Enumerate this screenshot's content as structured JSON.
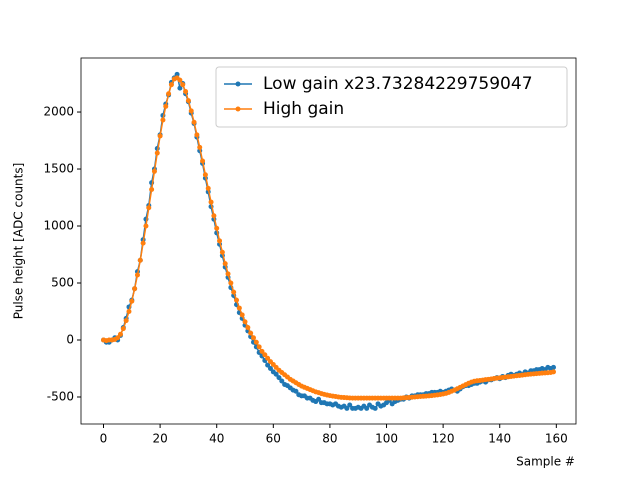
{
  "chart_data": {
    "type": "line",
    "xlabel": "Sample #",
    "ylabel": "Pulse height [ADC counts]",
    "xlim": [
      -7.95,
      166.95
    ],
    "ylim": [
      -737,
      2474
    ],
    "xticks": [
      0,
      20,
      40,
      60,
      80,
      100,
      120,
      140,
      160
    ],
    "yticks": [
      -500,
      0,
      500,
      1000,
      1500,
      2000
    ],
    "legend": "upper right",
    "x": [
      0,
      1,
      2,
      3,
      4,
      5,
      6,
      7,
      8,
      9,
      10,
      11,
      12,
      13,
      14,
      15,
      16,
      17,
      18,
      19,
      20,
      21,
      22,
      23,
      24,
      25,
      26,
      27,
      28,
      29,
      30,
      31,
      32,
      33,
      34,
      35,
      36,
      37,
      38,
      39,
      40,
      41,
      42,
      43,
      44,
      45,
      46,
      47,
      48,
      49,
      50,
      51,
      52,
      53,
      54,
      55,
      56,
      57,
      58,
      59,
      60,
      61,
      62,
      63,
      64,
      65,
      66,
      67,
      68,
      69,
      70,
      71,
      72,
      73,
      74,
      75,
      76,
      77,
      78,
      79,
      80,
      81,
      82,
      83,
      84,
      85,
      86,
      87,
      88,
      89,
      90,
      91,
      92,
      93,
      94,
      95,
      96,
      97,
      98,
      99,
      100,
      101,
      102,
      103,
      104,
      105,
      106,
      107,
      108,
      109,
      110,
      111,
      112,
      113,
      114,
      115,
      116,
      117,
      118,
      119,
      120,
      121,
      122,
      123,
      124,
      125,
      126,
      127,
      128,
      129,
      130,
      131,
      132,
      133,
      134,
      135,
      136,
      137,
      138,
      139,
      140,
      141,
      142,
      143,
      144,
      145,
      146,
      147,
      148,
      149,
      150,
      151,
      152,
      153,
      154,
      155,
      156,
      157,
      158,
      159
    ],
    "series": [
      {
        "name": "Low gain x23.73284229759047",
        "color": "#1f77b4",
        "values": [
          0,
          -20,
          -20,
          0,
          20,
          0,
          40,
          110,
          190,
          290,
          350,
          450,
          600,
          700,
          880,
          1060,
          1180,
          1380,
          1500,
          1680,
          1800,
          1970,
          2070,
          2150,
          2260,
          2300,
          2330,
          2210,
          2250,
          2160,
          2090,
          1990,
          1900,
          1780,
          1660,
          1550,
          1420,
          1300,
          1170,
          1060,
          940,
          840,
          740,
          640,
          550,
          460,
          390,
          310,
          240,
          190,
          130,
          80,
          30,
          -20,
          -60,
          -110,
          -140,
          -180,
          -220,
          -250,
          -280,
          -300,
          -330,
          -360,
          -390,
          -400,
          -420,
          -440,
          -450,
          -480,
          -490,
          -490,
          -510,
          -510,
          -530,
          -540,
          -520,
          -550,
          -550,
          -560,
          -560,
          -570,
          -560,
          -580,
          -590,
          -580,
          -600,
          -570,
          -600,
          -600,
          -590,
          -600,
          -580,
          -600,
          -570,
          -590,
          -600,
          -560,
          -580,
          -570,
          -550,
          -530,
          -560,
          -540,
          -530,
          -520,
          -520,
          -500,
          -510,
          -490,
          -490,
          -480,
          -480,
          -480,
          -470,
          -470,
          -460,
          -460,
          -460,
          -450,
          -460,
          -450,
          -440,
          -430,
          -440,
          -450,
          -430,
          -410,
          -400,
          -400,
          -390,
          -380,
          -380,
          -370,
          -360,
          -370,
          -350,
          -350,
          -340,
          -330,
          -340,
          -320,
          -330,
          -310,
          -300,
          -310,
          -300,
          -290,
          -300,
          -280,
          -290,
          -270,
          -270,
          -260,
          -260,
          -250,
          -260,
          -240,
          -250,
          -240
        ]
      },
      {
        "name": "High gain",
        "color": "#ff7f0e",
        "values": [
          0,
          -5,
          0,
          0,
          5,
          20,
          50,
          100,
          170,
          250,
          340,
          450,
          570,
          700,
          850,
          1000,
          1160,
          1320,
          1480,
          1640,
          1790,
          1930,
          2050,
          2160,
          2240,
          2290,
          2300,
          2280,
          2240,
          2180,
          2100,
          2010,
          1910,
          1800,
          1690,
          1570,
          1450,
          1330,
          1210,
          1090,
          980,
          870,
          770,
          670,
          580,
          500,
          420,
          350,
          280,
          220,
          160,
          110,
          60,
          20,
          -20,
          -60,
          -100,
          -130,
          -160,
          -190,
          -215,
          -240,
          -265,
          -285,
          -305,
          -325,
          -345,
          -360,
          -375,
          -390,
          -405,
          -415,
          -425,
          -435,
          -445,
          -455,
          -462,
          -470,
          -477,
          -483,
          -488,
          -492,
          -496,
          -500,
          -503,
          -505,
          -507,
          -509,
          -510,
          -510,
          -510,
          -510,
          -510,
          -510,
          -510,
          -510,
          -510,
          -510,
          -510,
          -510,
          -510,
          -510,
          -510,
          -510,
          -510,
          -510,
          -508,
          -506,
          -504,
          -502,
          -500,
          -498,
          -496,
          -494,
          -492,
          -490,
          -488,
          -485,
          -482,
          -478,
          -474,
          -468,
          -460,
          -450,
          -440,
          -428,
          -416,
          -404,
          -392,
          -380,
          -370,
          -362,
          -358,
          -355,
          -352,
          -348,
          -345,
          -342,
          -338,
          -335,
          -332,
          -329,
          -326,
          -323,
          -320,
          -317,
          -314,
          -311,
          -308,
          -305,
          -302,
          -299,
          -297,
          -295,
          -293,
          -291,
          -289,
          -287,
          -285,
          -280
        ]
      }
    ]
  }
}
